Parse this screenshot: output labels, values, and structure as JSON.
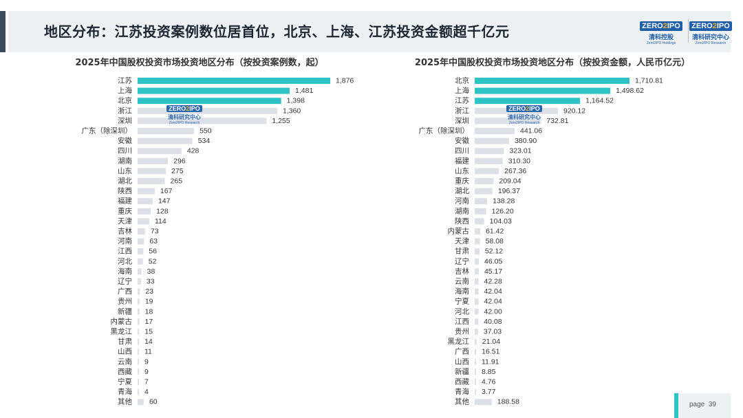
{
  "page": {
    "title": "地区分布：江苏投资案例数位居首位，北京、上海、江苏投资金额超千亿元",
    "page_label": "page",
    "page_number": "39"
  },
  "logos": {
    "zero_word": "ZERO",
    "two_mark": "2",
    "ipo_word": "IPO",
    "holdings_cn": "清科控股",
    "holdings_en": "Zero2IPO Holdings",
    "research_cn": "清科研究中心",
    "research_en": "Zero2IPO Research"
  },
  "colors": {
    "highlight": "#2ec4c6",
    "normal": "#dde0e6",
    "brand_blue": "#1f5fa8"
  },
  "chart_data": [
    {
      "type": "bar",
      "orientation": "horizontal",
      "title": "2025年中国股权投资市场投资地区分布（按投资案例数，起）",
      "categories": [
        "江苏",
        "上海",
        "北京",
        "浙江",
        "深圳",
        "广东（除深圳）",
        "安徽",
        "四川",
        "湖南",
        "山东",
        "湖北",
        "陕西",
        "福建",
        "重庆",
        "天津",
        "吉林",
        "河南",
        "江西",
        "河北",
        "海南",
        "辽宁",
        "广西",
        "贵州",
        "新疆",
        "内蒙古",
        "黑龙江",
        "甘肃",
        "山西",
        "云南",
        "西藏",
        "宁夏",
        "青海",
        "其他"
      ],
      "values": [
        1876,
        1481,
        1398,
        1360,
        1255,
        550,
        534,
        428,
        296,
        275,
        265,
        167,
        147,
        128,
        114,
        73,
        63,
        56,
        52,
        38,
        33,
        23,
        19,
        18,
        17,
        15,
        14,
        11,
        9,
        9,
        7,
        4,
        60
      ],
      "value_labels": [
        "1,876",
        "1,481",
        "1,398",
        "1,360",
        "1,255",
        "550",
        "534",
        "428",
        "296",
        "275",
        "265",
        "167",
        "147",
        "128",
        "114",
        "73",
        "63",
        "56",
        "52",
        "38",
        "33",
        "23",
        "19",
        "18",
        "17",
        "15",
        "14",
        "11",
        "9",
        "9",
        "7",
        "4",
        "60"
      ],
      "highlighted": [
        "江苏",
        "上海",
        "北京"
      ]
    },
    {
      "type": "bar",
      "orientation": "horizontal",
      "title": "2025年中国股权投资市场投资地区分布（按投资金额，人民币亿元）",
      "categories": [
        "北京",
        "上海",
        "江苏",
        "浙江",
        "深圳",
        "广东（除深圳）",
        "安徽",
        "四川",
        "福建",
        "山东",
        "重庆",
        "湖北",
        "河南",
        "湖南",
        "陕西",
        "内蒙古",
        "天津",
        "甘肃",
        "辽宁",
        "吉林",
        "云南",
        "海南",
        "宁夏",
        "河北",
        "江西",
        "贵州",
        "黑龙江",
        "广西",
        "山西",
        "新疆",
        "西藏",
        "青海",
        "其他"
      ],
      "values": [
        1710.81,
        1498.62,
        1164.52,
        920.12,
        732.81,
        441.06,
        380.9,
        323.01,
        310.3,
        267.36,
        209.04,
        196.37,
        138.28,
        126.2,
        104.03,
        61.42,
        58.08,
        52.12,
        46.05,
        45.17,
        42.28,
        42.04,
        42.04,
        42.0,
        40.08,
        37.03,
        21.04,
        16.51,
        11.91,
        8.85,
        4.76,
        3.77,
        188.58
      ],
      "value_labels": [
        "1,710.81",
        "1,498.62",
        "1,164.52",
        "920.12",
        "732.81",
        "441.06",
        "380.90",
        "323.01",
        "310.30",
        "267.36",
        "209.04",
        "196.37",
        "138.28",
        "126.20",
        "104.03",
        "61.42",
        "58.08",
        "52.12",
        "46.05",
        "45.17",
        "42.28",
        "42.04",
        "42.04",
        "42.00",
        "40.08",
        "37.03",
        "21.04",
        "16.51",
        "11.91",
        "8.85",
        "4.76",
        "3.77",
        "188.58"
      ],
      "highlighted": [
        "北京",
        "上海",
        "江苏"
      ]
    }
  ]
}
